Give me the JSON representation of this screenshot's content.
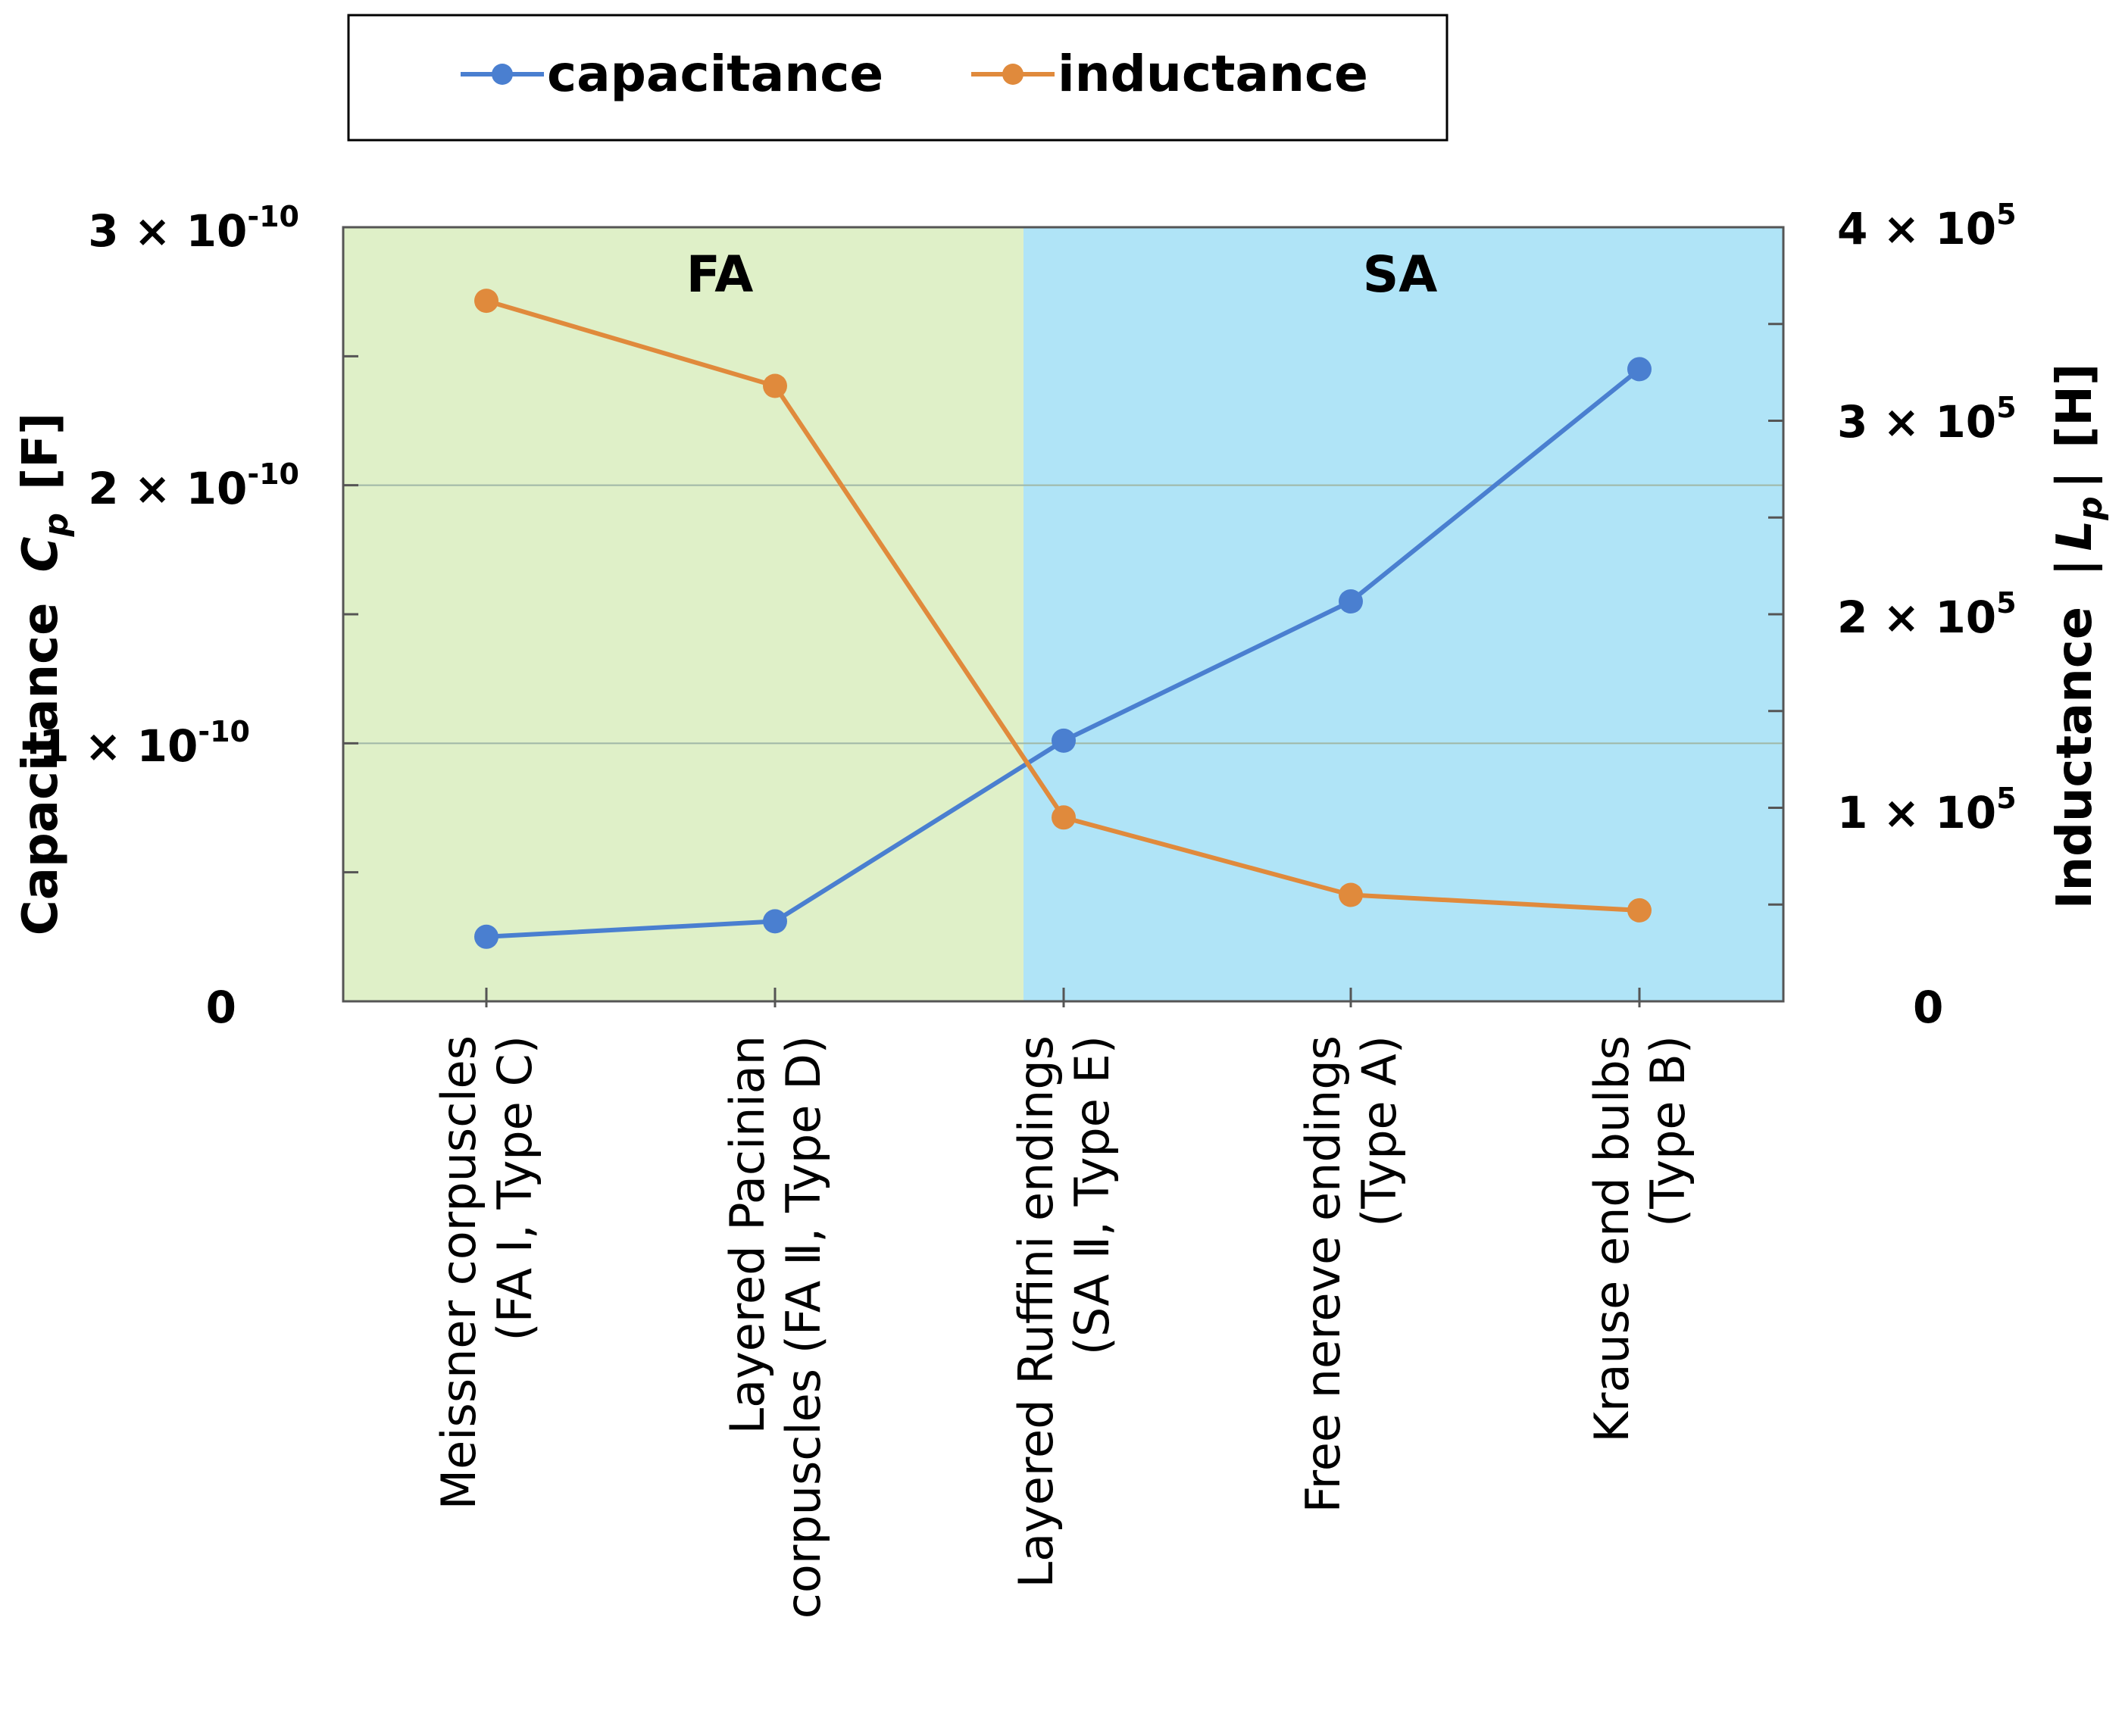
{
  "legend": {
    "items": [
      {
        "label": "capacitance",
        "color": "#4a7fd0"
      },
      {
        "label": "inductance",
        "color": "#e08a3c"
      }
    ]
  },
  "regions": [
    {
      "label": "FA",
      "color": "#dff0c8"
    },
    {
      "label": "SA",
      "color": "#b0e4f7"
    }
  ],
  "axes": {
    "left": {
      "label_main": "Capacitance",
      "label_symbol": "C",
      "label_sub": "p",
      "label_unit": "[F]",
      "ticks": [
        {
          "value": 0,
          "label": "0",
          "exp": ""
        },
        {
          "value": 1e-10,
          "label": "1 × 10",
          "exp": "-10"
        },
        {
          "value": 2e-10,
          "label": "2 × 10",
          "exp": "-10"
        },
        {
          "value": 3e-10,
          "label": "3 × 10",
          "exp": "-10"
        }
      ]
    },
    "right": {
      "label_main": "Inductance",
      "label_open": "|",
      "label_symbol": "L",
      "label_sub": "p",
      "label_close": "|",
      "label_unit": "[H]",
      "ticks": [
        {
          "value": 0,
          "label": "0",
          "exp": ""
        },
        {
          "value": 100000,
          "label": "1 × 10",
          "exp": "5"
        },
        {
          "value": 200000,
          "label": "2 × 10",
          "exp": "5"
        },
        {
          "value": 300000,
          "label": "3 × 10",
          "exp": "5"
        },
        {
          "value": 400000,
          "label": "4 × 10",
          "exp": "5"
        }
      ]
    }
  },
  "chart_data": {
    "type": "line",
    "categories": [
      [
        "Meissner corpuscles",
        "(FA Ⅰ, Type C)"
      ],
      [
        "Layered Pacinian",
        "corpuscles (FA Ⅱ, Type D)"
      ],
      [
        "Layered Ruffini endings",
        "(SA Ⅱ, Type E)"
      ],
      [
        "Free nereve endings",
        "(Type A)"
      ],
      [
        "Krause end bulbs",
        "(Type B)"
      ]
    ],
    "series": [
      {
        "name": "capacitance",
        "axis": "left",
        "color": "#4a7fd0",
        "values": [
          2.5e-11,
          3.1e-11,
          1.01e-10,
          1.55e-10,
          2.45e-10
        ]
      },
      {
        "name": "inductance",
        "axis": "right",
        "color": "#e08a3c",
        "values": [
          362000,
          318000,
          95000,
          55000,
          47000
        ]
      }
    ],
    "ylim_left": [
      0,
      3e-10
    ],
    "ylim_right": [
      0,
      400000
    ],
    "grid": "horizontal at major left ticks",
    "legend_position": "top"
  }
}
